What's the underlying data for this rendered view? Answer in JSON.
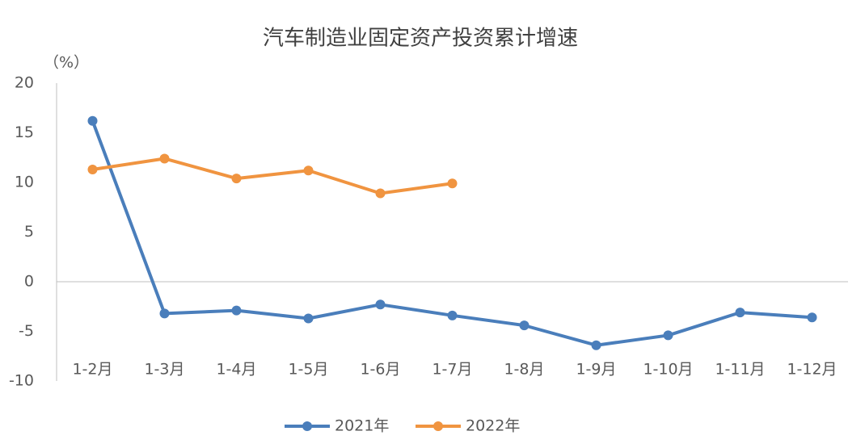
{
  "chart_data": {
    "type": "line",
    "title": "汽车制造业固定资产投资累计增速",
    "y_label": "（%）",
    "categories": [
      "1-2月",
      "1-3月",
      "1-4月",
      "1-5月",
      "1-6月",
      "1-7月",
      "1-8月",
      "1-9月",
      "1-10月",
      "1-11月",
      "1-12月"
    ],
    "series": [
      {
        "name": "2021年",
        "color": "#4a7ebb",
        "values": [
          16.2,
          -3.2,
          -2.9,
          -3.7,
          -2.3,
          -3.4,
          -4.4,
          -6.4,
          -5.4,
          -3.1,
          -3.6
        ]
      },
      {
        "name": "2022年",
        "color": "#f09440",
        "values": [
          11.3,
          12.4,
          10.4,
          11.2,
          8.9,
          9.9,
          null,
          null,
          null,
          null,
          null
        ]
      }
    ],
    "ylim": [
      -10,
      20
    ],
    "yticks": [
      -10,
      -5,
      0,
      5,
      10,
      15,
      20
    ],
    "grid": false,
    "legend": "bottom"
  }
}
